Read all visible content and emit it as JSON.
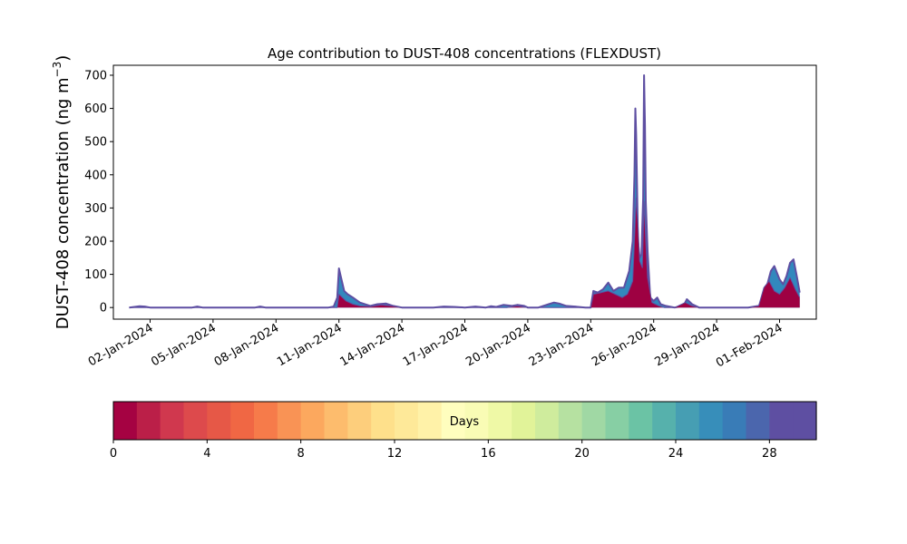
{
  "chart_data": {
    "type": "area",
    "title": "Age contribution to DUST-408 concentrations (FLEXDUST)",
    "ylabel_main": "DUST-408 concentration (ng m",
    "ylabel_unit_sup": "−3",
    "ylabel_close": ")",
    "xlabel": "",
    "ylim": [
      -35,
      730
    ],
    "xlim": [
      "2023-12-31T06:00",
      "2024-02-02T18:00"
    ],
    "yticks": [
      0,
      100,
      200,
      300,
      400,
      500,
      600,
      700
    ],
    "xticks": [
      "02-Jan-2024",
      "05-Jan-2024",
      "08-Jan-2024",
      "11-Jan-2024",
      "14-Jan-2024",
      "17-Jan-2024",
      "20-Jan-2024",
      "23-Jan-2024",
      "26-Jan-2024",
      "29-Jan-2024",
      "01-Feb-2024"
    ],
    "xtick_dates": [
      "2024-01-02",
      "2024-01-05",
      "2024-01-08",
      "2024-01-11",
      "2024-01-14",
      "2024-01-17",
      "2024-01-20",
      "2024-01-23",
      "2024-01-26",
      "2024-01-29",
      "2024-02-01"
    ],
    "grid": false,
    "series": [
      {
        "fill_color": "#9e0142",
        "line_color": "#5e4fa2",
        "x": [
          "2024-01-01T00:00",
          "2024-01-10T22:00",
          "2024-01-11T00:00",
          "2024-01-11T04:00",
          "2024-01-11T08:00",
          "2024-01-11T16:00",
          "2024-01-12T00:00",
          "2024-01-12T12:00",
          "2024-01-13T00:00",
          "2024-01-13T12:00",
          "2024-01-14T00:00",
          "2024-01-18T00:00",
          "2024-01-18T12:00",
          "2024-01-19T00:00",
          "2024-01-19T12:00",
          "2024-01-20T00:00",
          "2024-01-21T00:00",
          "2024-01-21T12:00",
          "2024-01-22T00:00",
          "2024-01-22T12:00",
          "2024-01-23T00:00",
          "2024-01-23T03:00",
          "2024-01-23T12:00",
          "2024-01-23T20:00",
          "2024-01-24T04:00",
          "2024-01-24T12:00",
          "2024-01-24T18:00",
          "2024-01-25T00:00",
          "2024-01-25T02:00",
          "2024-01-25T04:00",
          "2024-01-25T06:00",
          "2024-01-25T08:00",
          "2024-01-25T11:00",
          "2024-01-25T13:00",
          "2024-01-25T15:00",
          "2024-01-25T17:00",
          "2024-01-25T22:00",
          "2024-01-26T02:00",
          "2024-01-26T06:00",
          "2024-01-26T12:00",
          "2024-01-27T00:00",
          "2024-01-27T12:00",
          "2024-01-27T20:00",
          "2024-01-28T04:00",
          "2024-01-28T12:00",
          "2024-01-29T00:00",
          "2024-01-30T00:00",
          "2024-01-30T12:00",
          "2024-01-31T00:00",
          "2024-01-31T06:00",
          "2024-01-31T12:00",
          "2024-01-31T18:00",
          "2024-02-01T00:00",
          "2024-02-01T06:00",
          "2024-02-01T12:00",
          "2024-02-01T18:00",
          "2024-02-01T23:00"
        ],
        "values": [
          0,
          0,
          40,
          30,
          20,
          10,
          5,
          3,
          8,
          5,
          0,
          0,
          0,
          0,
          5,
          0,
          0,
          0,
          0,
          0,
          0,
          40,
          45,
          50,
          40,
          30,
          40,
          80,
          200,
          330,
          250,
          140,
          120,
          320,
          200,
          90,
          15,
          10,
          5,
          0,
          0,
          15,
          5,
          0,
          0,
          0,
          0,
          0,
          5,
          60,
          80,
          50,
          40,
          60,
          90,
          55,
          30
        ]
      },
      {
        "fill_color": "#3288bd",
        "line_color": "#5e4fa2",
        "x": [
          "2024-01-01T00:00",
          "2024-01-01T12:00",
          "2024-01-01T18:00",
          "2024-01-02T00:00",
          "2024-01-04T00:00",
          "2024-01-04T06:00",
          "2024-01-04T12:00",
          "2024-01-07T00:00",
          "2024-01-07T06:00",
          "2024-01-07T12:00",
          "2024-01-10T12:00",
          "2024-01-10T18:00",
          "2024-01-10T22:00",
          "2024-01-11T00:00",
          "2024-01-11T02:00",
          "2024-01-11T06:00",
          "2024-01-11T10:00",
          "2024-01-11T16:00",
          "2024-01-12T00:00",
          "2024-01-12T12:00",
          "2024-01-12T20:00",
          "2024-01-13T06:00",
          "2024-01-13T14:00",
          "2024-01-14T00:00",
          "2024-01-15T12:00",
          "2024-01-16T00:00",
          "2024-01-16T12:00",
          "2024-01-17T00:00",
          "2024-01-17T12:00",
          "2024-01-18T00:00",
          "2024-01-18T06:00",
          "2024-01-18T12:00",
          "2024-01-18T20:00",
          "2024-01-19T06:00",
          "2024-01-19T12:00",
          "2024-01-19T20:00",
          "2024-01-20T00:00",
          "2024-01-20T12:00",
          "2024-01-21T00:00",
          "2024-01-21T06:00",
          "2024-01-21T12:00",
          "2024-01-21T20:00",
          "2024-01-22T06:00",
          "2024-01-22T18:00",
          "2024-01-23T00:00",
          "2024-01-23T03:00",
          "2024-01-23T08:00",
          "2024-01-23T14:00",
          "2024-01-23T20:00",
          "2024-01-24T02:00",
          "2024-01-24T08:00",
          "2024-01-24T14:00",
          "2024-01-24T20:00",
          "2024-01-25T00:00",
          "2024-01-25T02:00",
          "2024-01-25T03:00",
          "2024-01-25T04:00",
          "2024-01-25T06:00",
          "2024-01-25T08:00",
          "2024-01-25T10:00",
          "2024-01-25T12:00",
          "2024-01-25T13:00",
          "2024-01-25T14:00",
          "2024-01-25T15:00",
          "2024-01-25T17:00",
          "2024-01-25T20:00",
          "2024-01-26T00:00",
          "2024-01-26T04:00",
          "2024-01-26T08:00",
          "2024-01-26T14:00",
          "2024-01-27T00:00",
          "2024-01-27T10:00",
          "2024-01-27T14:00",
          "2024-01-27T20:00",
          "2024-01-28T04:00",
          "2024-01-29T00:00",
          "2024-01-30T00:00",
          "2024-01-30T12:00",
          "2024-01-31T00:00",
          "2024-01-31T06:00",
          "2024-01-31T10:00",
          "2024-01-31T14:00",
          "2024-01-31T18:00",
          "2024-02-01T00:00",
          "2024-02-01T04:00",
          "2024-02-01T08:00",
          "2024-02-01T12:00",
          "2024-02-01T16:00",
          "2024-02-01T20:00",
          "2024-02-01T23:00"
        ],
        "values": [
          0,
          4,
          3,
          0,
          0,
          3,
          0,
          0,
          3,
          0,
          0,
          3,
          30,
          118,
          95,
          50,
          40,
          30,
          15,
          5,
          10,
          12,
          5,
          0,
          0,
          3,
          2,
          0,
          3,
          0,
          4,
          2,
          8,
          5,
          8,
          5,
          0,
          0,
          10,
          15,
          12,
          5,
          3,
          0,
          0,
          50,
          45,
          55,
          75,
          50,
          60,
          60,
          110,
          200,
          400,
          600,
          520,
          200,
          150,
          160,
          330,
          700,
          550,
          320,
          170,
          30,
          20,
          30,
          10,
          5,
          0,
          5,
          25,
          10,
          0,
          0,
          0,
          0,
          5,
          15,
          70,
          110,
          125,
          85,
          70,
          95,
          135,
          145,
          90,
          45
        ]
      }
    ],
    "colorbar": {
      "label": "Days",
      "min": 0,
      "max": 30,
      "ticks": [
        0,
        4,
        8,
        12,
        16,
        20,
        24,
        28
      ],
      "colors": [
        "#a50242",
        "#bb1f48",
        "#d0384e",
        "#dd4a4c",
        "#e65847",
        "#f06744",
        "#f67b4a",
        "#f99355",
        "#fca85e",
        "#fdbc6d",
        "#fdce7c",
        "#fee08b",
        "#fee999",
        "#fff2a8",
        "#fffebe",
        "#f9fcb5",
        "#eff9a6",
        "#e1f399",
        "#cfec9d",
        "#b6e1a1",
        "#a0d8a4",
        "#87cfa4",
        "#6bc3a5",
        "#56b1ac",
        "#469eb3",
        "#378eba",
        "#397cb7",
        "#4b66ad",
        "#5e4fa2",
        "#5e4fa2"
      ]
    }
  }
}
